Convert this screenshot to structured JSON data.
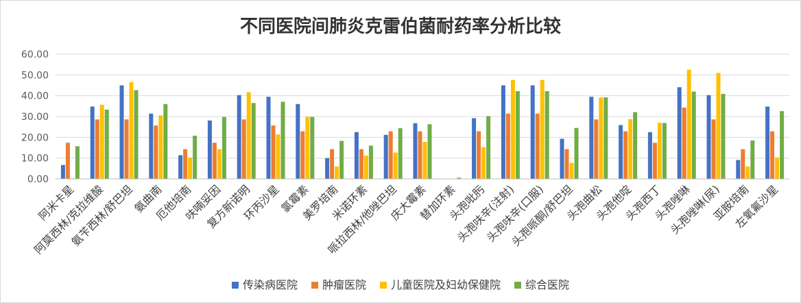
{
  "chart_data": {
    "type": "bar",
    "title": "不同医院间肺炎克雷伯菌耐药率分析比较",
    "xlabel": "",
    "ylabel": "",
    "ylim": [
      0,
      60
    ],
    "yticks": [
      "0.00",
      "10.00",
      "20.00",
      "30.00",
      "40.00",
      "50.00",
      "60.00"
    ],
    "grid": true,
    "legend_position": "bottom",
    "categories": [
      "阿米卡星",
      "阿莫西林/克拉维酸",
      "氨苄西林/舒巴坦",
      "氨曲南",
      "厄他培南",
      "呋喃妥因",
      "复方新诺明",
      "环丙沙星",
      "氯霉素",
      "美罗培南",
      "米诺环素",
      "哌拉西林/他唑巴坦",
      "庆大霉素",
      "替加环素",
      "头孢吡肟",
      "头孢呋辛(注射)",
      "头孢呋辛(口服)",
      "头孢哌酮/舒巴坦",
      "头孢曲松",
      "头孢他啶",
      "头孢西丁",
      "头孢唑啉",
      "头孢唑啉(尿)",
      "亚胺培南",
      "左氧氟沙星"
    ],
    "series": [
      {
        "name": "传染病医院",
        "color": "#4472C4",
        "values": [
          6.7,
          34.8,
          45.0,
          31.4,
          11.4,
          28.1,
          40.3,
          39.5,
          36.0,
          10.0,
          22.5,
          21.2,
          26.8,
          0,
          29.2,
          45.0,
          45.0,
          19.3,
          39.5,
          25.9,
          22.5,
          44.1,
          40.3,
          9.1,
          34.8
        ]
      },
      {
        "name": "肿瘤医院",
        "color": "#ED7D31",
        "values": [
          17.4,
          28.6,
          28.6,
          25.7,
          14.3,
          17.4,
          28.6,
          25.7,
          22.9,
          14.3,
          14.3,
          22.9,
          22.9,
          0,
          22.9,
          31.4,
          31.4,
          14.3,
          28.6,
          22.9,
          17.4,
          34.3,
          28.6,
          14.3,
          22.9
        ]
      },
      {
        "name": "儿童医院及妇幼保健院",
        "color": "#FFC000",
        "values": [
          0.3,
          35.7,
          46.5,
          30.5,
          10.3,
          14.3,
          41.7,
          21.4,
          29.8,
          6.0,
          11.2,
          12.7,
          17.8,
          0,
          15.3,
          47.6,
          47.6,
          7.7,
          39.2,
          28.7,
          27.0,
          52.5,
          51.0,
          6.0,
          10.3
        ]
      },
      {
        "name": "综合医院",
        "color": "#70AD47",
        "values": [
          15.7,
          33.3,
          42.7,
          36.0,
          20.8,
          29.8,
          36.5,
          37.1,
          29.8,
          18.3,
          16.0,
          24.4,
          26.3,
          0.6,
          30.2,
          42.2,
          42.2,
          24.5,
          39.2,
          32.1,
          26.9,
          42.0,
          40.9,
          18.5,
          32.6
        ]
      }
    ]
  }
}
